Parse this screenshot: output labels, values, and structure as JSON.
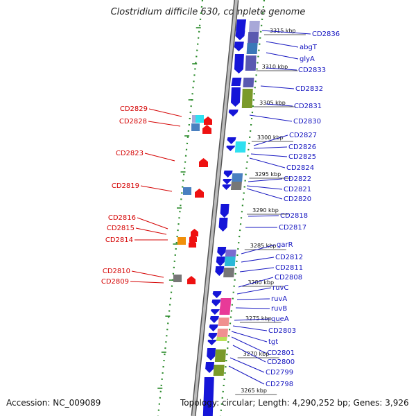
{
  "title": "Clostridium difficile 630, complete genome",
  "footer": {
    "accession": "Accession: NC_009089",
    "topology": "Topology: circular; Length: 4,290,252 bp; Genes: 3,926"
  },
  "colors": {
    "blue_gene": "#1515d8",
    "label_right": "#1515c0",
    "label_left": "#d40000",
    "dots": "#2a8a2a",
    "backbone": "#8a8a8a"
  },
  "ticks": [
    {
      "label": "3315 kbp"
    },
    {
      "label": "3310 kbp"
    },
    {
      "label": "3305 kbp"
    },
    {
      "label": "3300 kbp"
    },
    {
      "label": "3295 kbp"
    },
    {
      "label": "3290 kbp"
    },
    {
      "label": "3285 kbp"
    },
    {
      "label": "3280 kbp"
    },
    {
      "label": "3275 kbp"
    },
    {
      "label": "3270 kbp"
    },
    {
      "label": "3265 kbp"
    }
  ],
  "right_labels": [
    "CD2836",
    "abgT",
    "glyA",
    "CD2833",
    "CD2832",
    "CD2831",
    "CD2830",
    "CD2827",
    "CD2826",
    "CD2825",
    "CD2824",
    "CD2822",
    "CD2821",
    "CD2820",
    "CD2818",
    "CD2817",
    "garR",
    "CD2812",
    "CD2811",
    "CD2808",
    "ruvC",
    "ruvA",
    "ruvB",
    "queA",
    "CD2803",
    "tgt",
    "CD2801",
    "CD2800",
    "CD2799",
    "CD2798"
  ],
  "left_labels": [
    "CD2829",
    "CD2828",
    "CD2823",
    "CD2819",
    "CD2816",
    "CD2815",
    "CD2814",
    "CD2810",
    "CD2809"
  ]
}
